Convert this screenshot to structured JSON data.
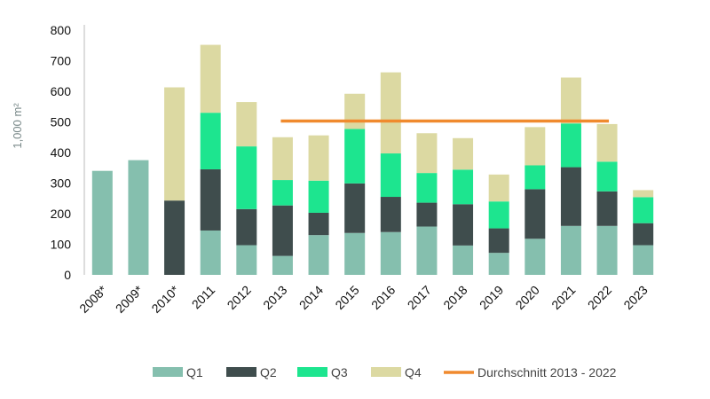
{
  "chart_data": {
    "type": "bar",
    "stacked": true,
    "categories": [
      "2008*",
      "2009*",
      "2010*",
      "2011",
      "2012",
      "2013",
      "2014",
      "2015",
      "2016",
      "2017",
      "2018",
      "2019",
      "2020",
      "2021",
      "2022",
      "2023"
    ],
    "series": [
      {
        "name": "Q1",
        "color": "#85bfae",
        "values": [
          340,
          375,
          0,
          145,
          97,
          62,
          130,
          137,
          140,
          158,
          96,
          72,
          118,
          160,
          160,
          97
        ]
      },
      {
        "name": "Q2",
        "color": "#3f4d4d",
        "values": [
          0,
          0,
          243,
          200,
          118,
          165,
          73,
          162,
          115,
          78,
          135,
          80,
          162,
          192,
          113,
          72
        ]
      },
      {
        "name": "Q3",
        "color": "#1de58f",
        "values": [
          0,
          0,
          0,
          185,
          205,
          83,
          105,
          178,
          142,
          97,
          113,
          88,
          78,
          143,
          97,
          85
        ]
      },
      {
        "name": "Q4",
        "color": "#dcd9a2",
        "values": [
          0,
          0,
          370,
          222,
          145,
          140,
          148,
          115,
          265,
          130,
          103,
          88,
          125,
          150,
          123,
          23
        ]
      }
    ],
    "average": {
      "name": "Durchschnitt 2013 - 2022",
      "color": "#f08a2e",
      "value": 503,
      "from": "2013",
      "to": "2022"
    },
    "ylabel": "1,000 m²",
    "ylim": [
      0,
      800
    ],
    "yticks": [
      0,
      100,
      200,
      300,
      400,
      500,
      600,
      700,
      800
    ],
    "grid": false,
    "legend_position": "bottom"
  }
}
